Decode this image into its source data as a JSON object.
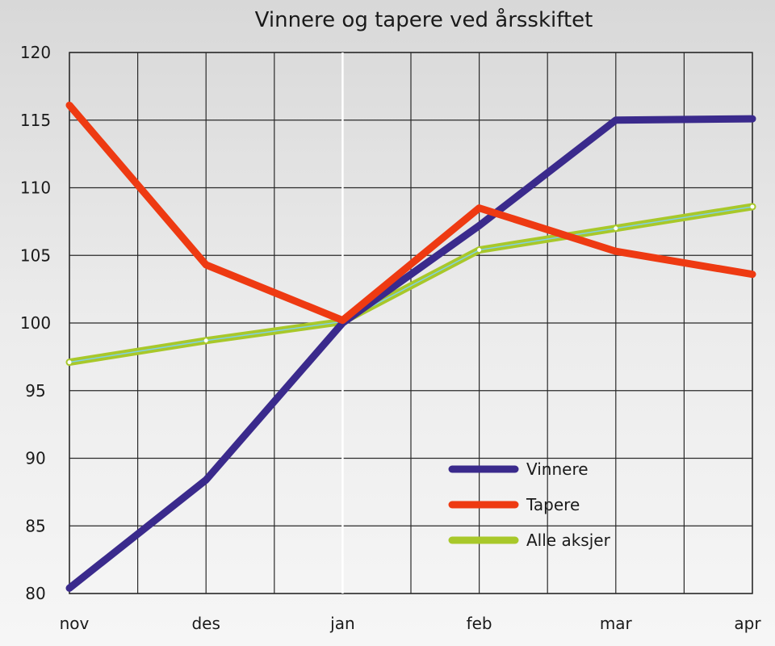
{
  "chart_data": {
    "type": "line",
    "title": "Vinnere og tapere ved årsskiftet",
    "categories": [
      "nov",
      "des",
      "jan",
      "feb",
      "mar",
      "apr"
    ],
    "ylim": [
      80,
      120
    ],
    "yticks": [
      80,
      85,
      90,
      95,
      100,
      105,
      110,
      115,
      120
    ],
    "grid": true,
    "legend_position": "bottom-right",
    "series": [
      {
        "name": "Vinnere",
        "color": "#3a2a8c",
        "values": [
          80.4,
          88.4,
          100.0,
          107.2,
          115.0,
          115.1
        ]
      },
      {
        "name": "Tapere",
        "color": "#ee3a12",
        "values": [
          116.1,
          104.3,
          100.2,
          108.5,
          105.3,
          103.6
        ]
      },
      {
        "name": "Alle aksjer",
        "color": "#a8c82a",
        "values": [
          97.1,
          98.7,
          100.1,
          105.4,
          107.0,
          108.6
        ]
      }
    ]
  }
}
